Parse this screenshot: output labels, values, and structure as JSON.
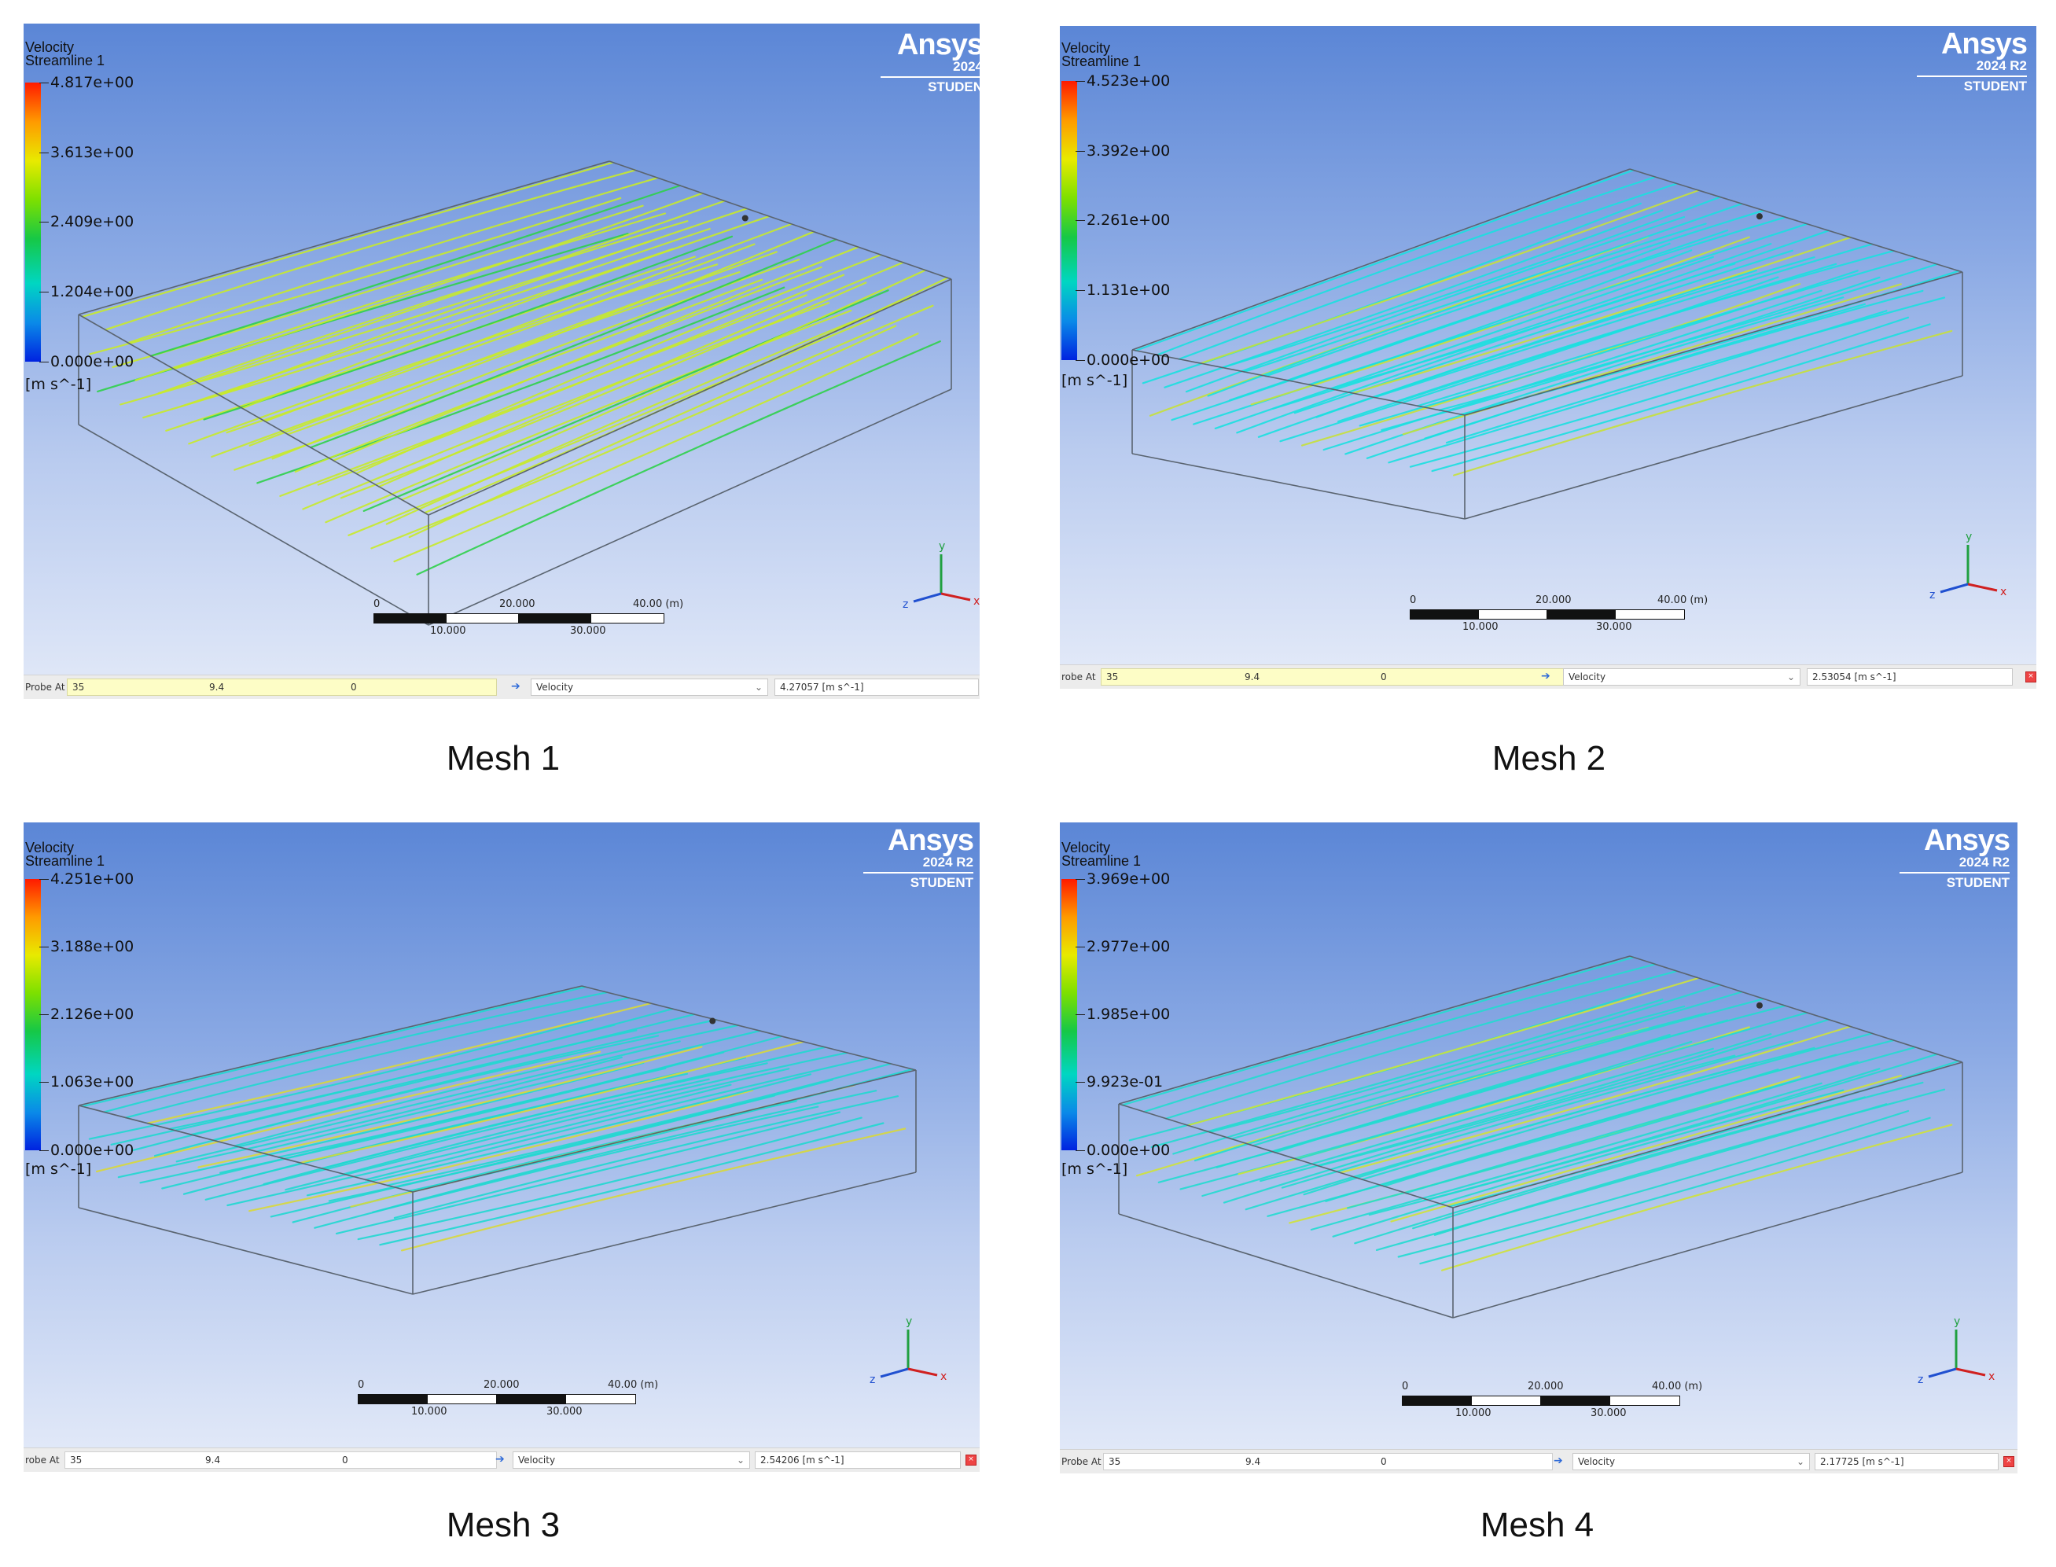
{
  "panels": [
    {
      "id": "mesh1",
      "legend_title": "Velocity",
      "legend_subtitle": "Streamline 1",
      "ticks": [
        "4.817e+00",
        "3.613e+00",
        "2.409e+00",
        "1.204e+00",
        "0.000e+00"
      ],
      "unit": "[m s^-1]",
      "brand_name": "Ansys",
      "brand_version": "2024",
      "brand_edition": "STUDEN",
      "scale_top_labels": [
        "0",
        "20.000",
        "40.00 (m)"
      ],
      "scale_bottom_labels": [
        "10.000",
        "30.000"
      ],
      "probe_label": "Probe At",
      "probe_coords": [
        "35",
        "9.4",
        "0"
      ],
      "probe_variable": "Velocity",
      "probe_result": "4.27057 [m s^-1]",
      "caption": "Mesh 1",
      "stream_color": "#c8ea2a",
      "accent_color": "#2fd04a"
    },
    {
      "id": "mesh2",
      "legend_title": "Velocity",
      "legend_subtitle": "Streamline 1",
      "ticks": [
        "4.523e+00",
        "3.392e+00",
        "2.261e+00",
        "1.131e+00",
        "0.000e+00"
      ],
      "unit": "[m s^-1]",
      "brand_name": "Ansys",
      "brand_version": "2024 R2",
      "brand_edition": "STUDENT",
      "scale_top_labels": [
        "0",
        "20.000",
        "40.00 (m)"
      ],
      "scale_bottom_labels": [
        "10.000",
        "30.000"
      ],
      "probe_label": "robe At",
      "probe_coords": [
        "35",
        "9.4",
        "0"
      ],
      "probe_variable": "Velocity",
      "probe_result": "2.53054 [m s^-1]",
      "caption": "Mesh 2",
      "stream_color": "#19e0e0",
      "accent_color": "#c6e03a"
    },
    {
      "id": "mesh3",
      "legend_title": "Velocity",
      "legend_subtitle": "Streamline 1",
      "ticks": [
        "4.251e+00",
        "3.188e+00",
        "2.126e+00",
        "1.063e+00",
        "0.000e+00"
      ],
      "unit": "[m s^-1]",
      "brand_name": "Ansys",
      "brand_version": "2024 R2",
      "brand_edition": "STUDENT",
      "scale_top_labels": [
        "0",
        "20.000",
        "40.00 (m)"
      ],
      "scale_bottom_labels": [
        "10.000",
        "30.000"
      ],
      "probe_label": "robe At",
      "probe_coords": [
        "35",
        "9.4",
        "0"
      ],
      "probe_variable": "Velocity",
      "probe_result": "2.54206 [m s^-1]",
      "caption": "Mesh 3",
      "stream_color": "#20d8d0",
      "accent_color": "#d8d83a"
    },
    {
      "id": "mesh4",
      "legend_title": "Velocity",
      "legend_subtitle": "Streamline 1",
      "ticks": [
        "3.969e+00",
        "2.977e+00",
        "1.985e+00",
        "9.923e-01",
        "0.000e+00"
      ],
      "unit": "[m s^-1]",
      "brand_name": "Ansys",
      "brand_version": "2024 R2",
      "brand_edition": "STUDENT",
      "scale_top_labels": [
        "0",
        "20.000",
        "40.00 (m)"
      ],
      "scale_bottom_labels": [
        "10.000",
        "30.000"
      ],
      "probe_label": "Probe At",
      "probe_coords": [
        "35",
        "9.4",
        "0"
      ],
      "probe_variable": "Velocity",
      "probe_result": "2.17725 [m s^-1]",
      "caption": "Mesh 4",
      "stream_color": "#22dcd0",
      "accent_color": "#cfe23a"
    }
  ],
  "axis_labels": {
    "x": "x",
    "y": "y",
    "z": "z"
  },
  "colors": {
    "box_edge": "#5a6470",
    "triad_x": "#d02020",
    "triad_y": "#20a040",
    "triad_z": "#2050d0"
  }
}
